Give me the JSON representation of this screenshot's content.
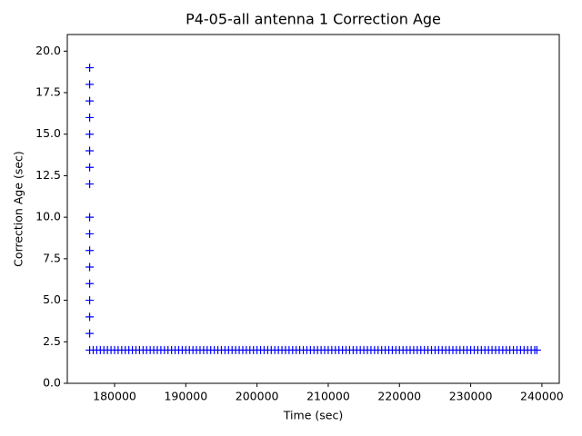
{
  "chart_data": {
    "type": "scatter",
    "title": "P4-05-all antenna 1 Correction Age",
    "x_label": "Time (sec)",
    "y_label": "Correction Age (sec)",
    "marker": "+",
    "grid": false,
    "xlim": [
      173360,
      242440
    ],
    "ylim": [
      0,
      21
    ],
    "xticks": [
      180000,
      190000,
      200000,
      210000,
      220000,
      230000,
      240000
    ],
    "yticks": [
      {
        "value": 0,
        "label": "0.0"
      },
      {
        "value": 2.5,
        "label": "2.5"
      },
      {
        "value": 5,
        "label": "5.0"
      },
      {
        "value": 7.5,
        "label": "7.5"
      },
      {
        "value": 10,
        "label": "10.0"
      },
      {
        "value": 12.5,
        "label": "12.5"
      },
      {
        "value": 15,
        "label": "15.0"
      },
      {
        "value": 17.5,
        "label": "17.5"
      },
      {
        "value": 20,
        "label": "20.0"
      }
    ],
    "series": [
      {
        "color": "#0000ff",
        "x": [
          176500,
          176500,
          176500,
          176500,
          176500,
          176500,
          176500,
          176500,
          176500,
          176500,
          176500,
          176500,
          176500,
          176500,
          176500,
          176500,
          176500,
          177000,
          177500,
          178000,
          178500,
          179000,
          179500,
          180000,
          180500,
          181000,
          181500,
          182000,
          182500,
          183000,
          183500,
          184000,
          184500,
          185000,
          185500,
          186000,
          186500,
          187000,
          187500,
          188000,
          188500,
          189000,
          189500,
          190000,
          190500,
          191000,
          191500,
          192000,
          192500,
          193000,
          193500,
          194000,
          194500,
          195000,
          195500,
          196000,
          196500,
          197000,
          197500,
          198000,
          198500,
          199000,
          199500,
          200000,
          200500,
          201000,
          201500,
          202000,
          202500,
          203000,
          203500,
          204000,
          204500,
          205000,
          205500,
          206000,
          206500,
          207000,
          207500,
          208000,
          208500,
          209000,
          209500,
          210000,
          210500,
          211000,
          211500,
          212000,
          212500,
          213000,
          213500,
          214000,
          214500,
          215000,
          215500,
          216000,
          216500,
          217000,
          217500,
          218000,
          218500,
          219000,
          219500,
          220000,
          220500,
          221000,
          221500,
          222000,
          222500,
          223000,
          223500,
          224000,
          224500,
          225000,
          225500,
          226000,
          226500,
          227000,
          227500,
          228000,
          228500,
          229000,
          229500,
          230000,
          230500,
          231000,
          231500,
          232000,
          232500,
          233000,
          233500,
          234000,
          234500,
          235000,
          235500,
          236000,
          236500,
          237000,
          237500,
          238000,
          238500,
          239000,
          239300
        ],
        "y": [
          19,
          18,
          17,
          16,
          15,
          14,
          13,
          12,
          10,
          9,
          8,
          7,
          6,
          5,
          4,
          3,
          2,
          2,
          2,
          2,
          2,
          2,
          2,
          2,
          2,
          2,
          2,
          2,
          2,
          2,
          2,
          2,
          2,
          2,
          2,
          2,
          2,
          2,
          2,
          2,
          2,
          2,
          2,
          2,
          2,
          2,
          2,
          2,
          2,
          2,
          2,
          2,
          2,
          2,
          2,
          2,
          2,
          2,
          2,
          2,
          2,
          2,
          2,
          2,
          2,
          2,
          2,
          2,
          2,
          2,
          2,
          2,
          2,
          2,
          2,
          2,
          2,
          2,
          2,
          2,
          2,
          2,
          2,
          2,
          2,
          2,
          2,
          2,
          2,
          2,
          2,
          2,
          2,
          2,
          2,
          2,
          2,
          2,
          2,
          2,
          2,
          2,
          2,
          2,
          2,
          2,
          2,
          2,
          2,
          2,
          2,
          2,
          2,
          2,
          2,
          2,
          2,
          2,
          2,
          2,
          2,
          2,
          2,
          2,
          2,
          2,
          2,
          2,
          2,
          2,
          2,
          2,
          2,
          2,
          2,
          2,
          2,
          2,
          2,
          2,
          2,
          2,
          2
        ]
      }
    ]
  }
}
